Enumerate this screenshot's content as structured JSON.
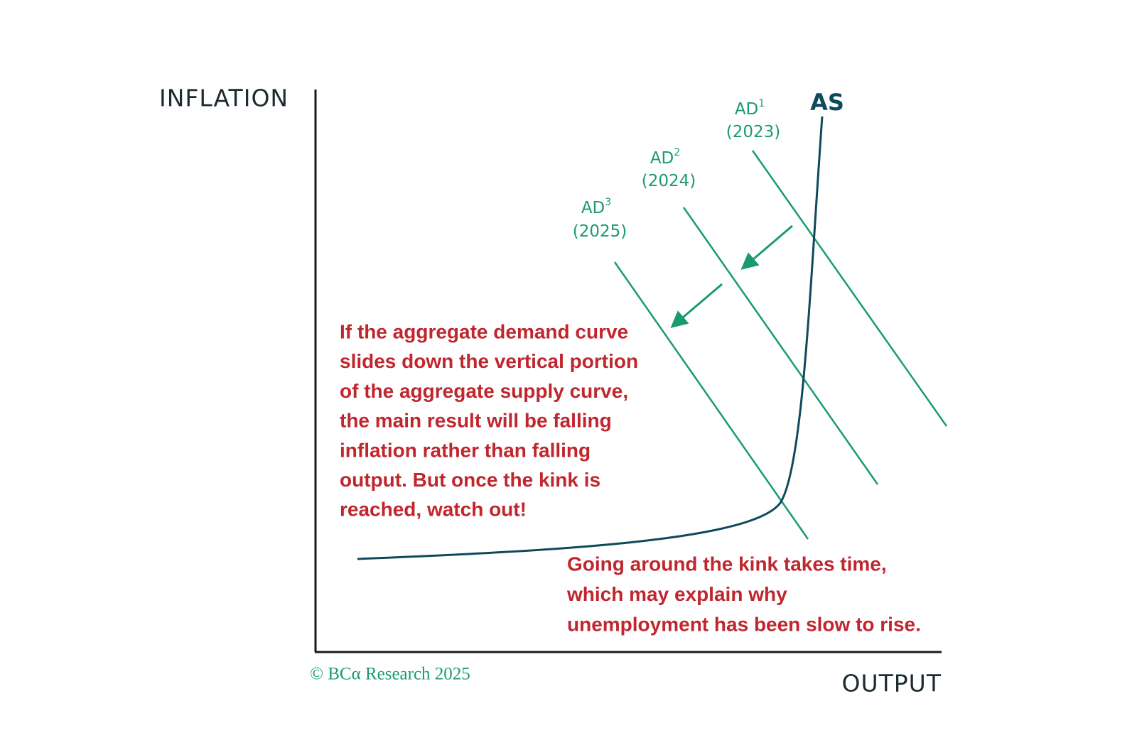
{
  "axes": {
    "y_label": "INFLATION",
    "x_label": "OUTPUT"
  },
  "curves": {
    "as": {
      "label": "AS"
    },
    "ad": [
      {
        "name": "AD",
        "sup": "1",
        "year": "(2023)"
      },
      {
        "name": "AD",
        "sup": "2",
        "year": "(2024)"
      },
      {
        "name": "AD",
        "sup": "3",
        "year": "(2025)"
      }
    ]
  },
  "annotations": {
    "main": [
      "If the aggregate demand curve",
      "slides down the vertical portion",
      "of the aggregate supply curve,",
      "the main result will be falling",
      "inflation rather than falling",
      "output. But once the kink is",
      "reached, watch out!"
    ],
    "kink": [
      "Going around the kink takes time,",
      "which may explain why",
      "unemployment has been slow to rise."
    ]
  },
  "credit": "© BCα Research 2025"
}
